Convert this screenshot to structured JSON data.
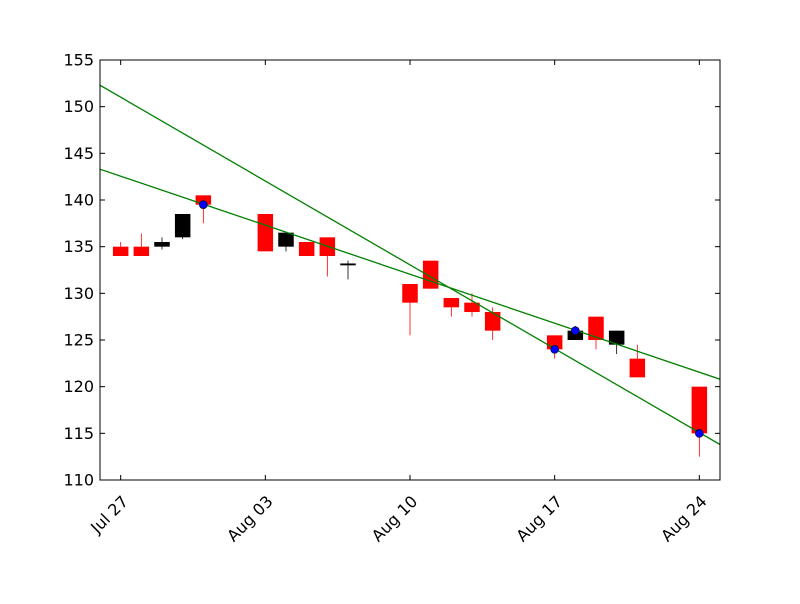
{
  "chart_data": {
    "type": "candlestick",
    "title": "",
    "xlabel": "",
    "ylabel": "",
    "ylim": [
      110,
      155
    ],
    "xlim": [
      "2015-07-26",
      "2015-08-25"
    ],
    "x_ticks": [
      {
        "date": "2015-07-27",
        "label": "Jul 27"
      },
      {
        "date": "2015-08-03",
        "label": "Aug 03"
      },
      {
        "date": "2015-08-10",
        "label": "Aug 10"
      },
      {
        "date": "2015-08-17",
        "label": "Aug 17"
      },
      {
        "date": "2015-08-24",
        "label": "Aug 24"
      }
    ],
    "y_ticks": [
      110,
      115,
      120,
      125,
      130,
      135,
      140,
      145,
      150,
      155
    ],
    "grid": false,
    "colors": {
      "up": "#000000",
      "down": "#ff0000",
      "trendline": "#008000",
      "marker": "#0000ff"
    },
    "candles": [
      {
        "date": "2015-07-27",
        "open": 135.0,
        "high": 135.5,
        "low": 134.0,
        "close": 134.0
      },
      {
        "date": "2015-07-28",
        "open": 135.0,
        "high": 136.4,
        "low": 134.0,
        "close": 134.0
      },
      {
        "date": "2015-07-29",
        "open": 135.0,
        "high": 136.0,
        "low": 134.7,
        "close": 135.5
      },
      {
        "date": "2015-07-30",
        "open": 136.0,
        "high": 138.5,
        "low": 135.8,
        "close": 138.5
      },
      {
        "date": "2015-07-31",
        "open": 140.5,
        "high": 140.5,
        "low": 137.5,
        "close": 139.5
      },
      {
        "date": "2015-08-03",
        "open": 138.5,
        "high": 138.5,
        "low": 134.5,
        "close": 134.5
      },
      {
        "date": "2015-08-04",
        "open": 135.0,
        "high": 136.6,
        "low": 134.5,
        "close": 136.5
      },
      {
        "date": "2015-08-05",
        "open": 135.5,
        "high": 135.5,
        "low": 134.0,
        "close": 134.0
      },
      {
        "date": "2015-08-06",
        "open": 136.0,
        "high": 136.0,
        "low": 131.8,
        "close": 134.0
      },
      {
        "date": "2015-08-07",
        "open": 133.0,
        "high": 133.5,
        "low": 131.5,
        "close": 133.2
      },
      {
        "date": "2015-08-10",
        "open": 131.0,
        "high": 131.0,
        "low": 125.5,
        "close": 129.0
      },
      {
        "date": "2015-08-11",
        "open": 133.5,
        "high": 133.5,
        "low": 130.5,
        "close": 130.5
      },
      {
        "date": "2015-08-12",
        "open": 129.5,
        "high": 129.5,
        "low": 127.5,
        "close": 128.5
      },
      {
        "date": "2015-08-13",
        "open": 129.0,
        "high": 130.0,
        "low": 127.5,
        "close": 128.0
      },
      {
        "date": "2015-08-14",
        "open": 128.0,
        "high": 128.5,
        "low": 125.0,
        "close": 126.0
      },
      {
        "date": "2015-08-17",
        "open": 125.5,
        "high": 125.5,
        "low": 123.0,
        "close": 124.0
      },
      {
        "date": "2015-08-18",
        "open": 125.0,
        "high": 126.5,
        "low": 125.0,
        "close": 126.0
      },
      {
        "date": "2015-08-19",
        "open": 127.5,
        "high": 127.5,
        "low": 124.0,
        "close": 125.0
      },
      {
        "date": "2015-08-20",
        "open": 124.5,
        "high": 126.0,
        "low": 123.5,
        "close": 126.0
      },
      {
        "date": "2015-08-21",
        "open": 123.0,
        "high": 124.5,
        "low": 121.0,
        "close": 121.0
      },
      {
        "date": "2015-08-24",
        "open": 120.0,
        "high": 120.0,
        "low": 112.5,
        "close": 115.0
      }
    ],
    "markers": [
      {
        "date": "2015-07-31",
        "value": 139.5
      },
      {
        "date": "2015-08-17",
        "value": 124.0
      },
      {
        "date": "2015-08-18",
        "value": 126.0
      },
      {
        "date": "2015-08-24",
        "value": 115.0
      }
    ],
    "trendlines": [
      {
        "points": [
          {
            "date": "2015-07-26",
            "value": 143.3
          },
          {
            "date": "2015-08-25",
            "value": 120.8
          }
        ]
      },
      {
        "points": [
          {
            "date": "2015-07-26",
            "value": 152.3
          },
          {
            "date": "2015-08-25",
            "value": 113.8
          }
        ]
      }
    ]
  }
}
